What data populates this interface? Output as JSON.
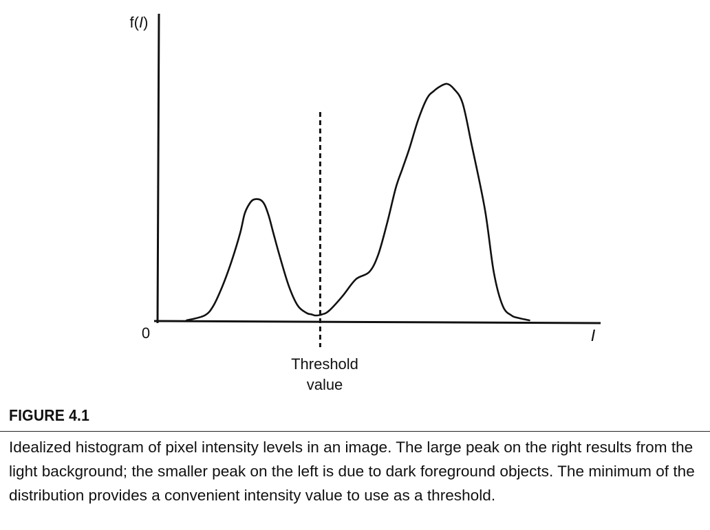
{
  "figure": {
    "label": "FIGURE 4.1",
    "caption": "Idealized histogram of pixel intensity levels in an image. The large peak on the right results from the light background; the smaller peak on the left is due to dark foreground objects. The minimum of the distribution provides a convenient intensity value to use as a threshold."
  },
  "chart_data": {
    "type": "line",
    "ylabel_prefix": "f(",
    "ylabel_var": "I",
    "ylabel_suffix": ")",
    "xlabel": "I",
    "origin_label": "0",
    "threshold_label_line1": "Threshold",
    "threshold_label_line2": "value",
    "threshold_x": 0.37,
    "xlim": [
      0,
      1
    ],
    "ylim": [
      0,
      1
    ],
    "grid": false,
    "series": [
      {
        "x": [
          0.07,
          0.11,
          0.13,
          0.15,
          0.17,
          0.19,
          0.2,
          0.21,
          0.22,
          0.235,
          0.245,
          0.255,
          0.265,
          0.28,
          0.3,
          0.32,
          0.34,
          0.35,
          0.36,
          0.375,
          0.39,
          0.42,
          0.45,
          0.48,
          0.5,
          0.52,
          0.54,
          0.555,
          0.57,
          0.59,
          0.61,
          0.625,
          0.64,
          0.655,
          0.67,
          0.69,
          0.71,
          0.74,
          0.76,
          0.78,
          0.8,
          0.815,
          0.84
        ],
        "y": [
          0.0,
          0.02,
          0.06,
          0.14,
          0.24,
          0.36,
          0.44,
          0.48,
          0.5,
          0.5,
          0.48,
          0.43,
          0.36,
          0.26,
          0.14,
          0.06,
          0.03,
          0.025,
          0.02,
          0.025,
          0.04,
          0.1,
          0.17,
          0.2,
          0.27,
          0.4,
          0.55,
          0.63,
          0.71,
          0.83,
          0.92,
          0.95,
          0.97,
          0.98,
          0.96,
          0.9,
          0.73,
          0.46,
          0.2,
          0.06,
          0.02,
          0.01,
          0.0
        ]
      }
    ]
  }
}
